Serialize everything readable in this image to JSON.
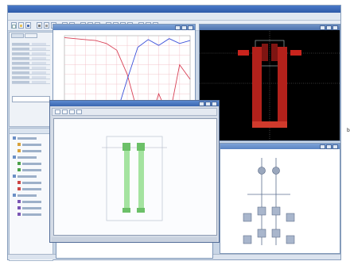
{
  "app": {
    "title": "",
    "menus": []
  },
  "footnote": "b.",
  "colors": {
    "accent": "#5b84c2",
    "plot_blue": "#3a4fd9",
    "plot_red": "#d84055",
    "layout_red": "#c9241d",
    "dialog_green": "#9ee09a"
  },
  "icons": [
    "window-minimize-icon",
    "window-maximize-icon",
    "window-close-icon",
    "folder-icon",
    "component-icon"
  ],
  "chart_data": {
    "type": "line",
    "title": "",
    "xlabel": "",
    "ylabel": "",
    "x": [
      0,
      1,
      2,
      3,
      4,
      5,
      6,
      7,
      8,
      9,
      10,
      11,
      12
    ],
    "xlim": [
      0,
      12
    ],
    "ylim": [
      0,
      100
    ],
    "grid": true,
    "series": [
      {
        "color": "#d84055",
        "values": [
          98,
          97,
          96,
          95,
          92,
          85,
          60,
          20,
          5,
          40,
          15,
          70,
          55
        ]
      },
      {
        "color": "#3a4fd9",
        "values": [
          2,
          3,
          4,
          6,
          10,
          20,
          55,
          88,
          96,
          90,
          97,
          92,
          95
        ]
      }
    ]
  }
}
